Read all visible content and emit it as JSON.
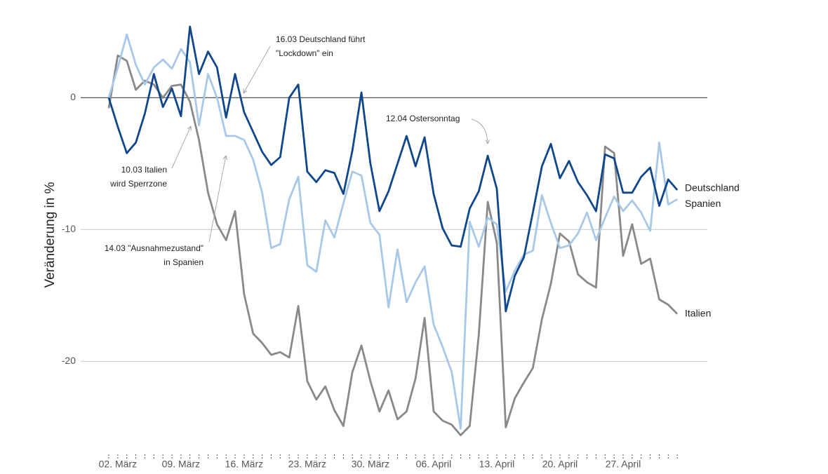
{
  "chart_data": {
    "type": "line",
    "y_label": "Veränderung in %",
    "categories": [
      null,
      "02. März",
      null,
      null,
      null,
      null,
      null,
      null,
      "09. März",
      null,
      null,
      null,
      null,
      null,
      null,
      "16. März",
      null,
      null,
      null,
      null,
      null,
      null,
      "23. März",
      null,
      null,
      null,
      null,
      null,
      null,
      "30. März",
      null,
      null,
      null,
      null,
      null,
      null,
      "06. April",
      null,
      null,
      null,
      null,
      null,
      null,
      "13. April",
      null,
      null,
      null,
      null,
      null,
      null,
      "20. April",
      null,
      null,
      null,
      null,
      null,
      null,
      "27. April",
      null,
      null,
      null,
      null,
      null,
      null
    ],
    "series": [
      {
        "name": "Italien",
        "color": "#898989",
        "values": [
          -0.8,
          3.2,
          2.8,
          0.6,
          1.3,
          1.0,
          0,
          0.9,
          1.0,
          -0.3,
          -3.2,
          -7.2,
          -9.6,
          -10.8,
          -8.6,
          -14.9,
          -17.9,
          -18.6,
          -19.5,
          -19.3,
          -19.7,
          -15.8,
          -21.5,
          -22.9,
          -21.9,
          -23.7,
          -24.9,
          -20.8,
          -18.8,
          -21.5,
          -23.8,
          -22.2,
          -24.4,
          -23.8,
          -21.3,
          -16.7,
          -23.8,
          -24.5,
          -24.8,
          -25.6,
          -24.9,
          -18.0,
          -7.9,
          -11.0,
          -25.0,
          -22.8,
          -21.6,
          -20.5,
          -16.8,
          -14.1,
          -10.3,
          -10.9,
          -13.4,
          -14.0,
          -14.4,
          -3.7,
          -4.2,
          -12.0,
          -9.6,
          -12.6,
          -12.2,
          -15.3,
          -15.7,
          -16.4
        ]
      },
      {
        "name": "Spanien",
        "color": "#a8c8e8",
        "values": [
          0,
          2.3,
          4.8,
          2.5,
          1.0,
          2.3,
          2.9,
          2.2,
          3.7,
          2.7,
          -2.1,
          1.8,
          0,
          -2.9,
          -2.9,
          -3.2,
          -4.7,
          -7.2,
          -11.4,
          -11.1,
          -7.7,
          -6.0,
          -12.7,
          -13.2,
          -9.3,
          -10.6,
          -8.0,
          -5.6,
          -5.9,
          -9.5,
          -10.4,
          -15.9,
          -11.5,
          -15.5,
          -14.0,
          -12.8,
          -17.2,
          -18.9,
          -20.8,
          -25.1,
          -9.4,
          -11.3,
          -9.1,
          -9.6,
          -14.7,
          -13.1,
          -11.9,
          -11.6,
          -7.4,
          -9.5,
          -11.4,
          -11.2,
          -10.3,
          -8.7,
          -10.8,
          -9.1,
          -7.5,
          -8.6,
          -7.8,
          -8.7,
          -10.1,
          -3.4,
          -8.1,
          -7.7
        ]
      },
      {
        "name": "Deutschland",
        "color": "#0f478a",
        "values": [
          0,
          -2.2,
          -4.2,
          -3.4,
          -1.2,
          1.8,
          -0.7,
          0.7,
          -1.4,
          5.4,
          1.8,
          3.5,
          2.3,
          -1.5,
          1.8,
          -1.1,
          -2.6,
          -4.1,
          -5.1,
          -4.5,
          0,
          1.0,
          -5.6,
          -6.4,
          -5.5,
          -5.7,
          -7.3,
          -4.0,
          0.4,
          -5.0,
          -8.6,
          -7.1,
          -5.0,
          -2.9,
          -5.2,
          -3.0,
          -7.3,
          -9.9,
          -11.2,
          -11.3,
          -8.4,
          -7.1,
          -4.4,
          -6.9,
          -16.2,
          -13.5,
          -12.1,
          -8.7,
          -5.2,
          -3.5,
          -6.1,
          -4.8,
          -6.4,
          -7.4,
          -8.6,
          -4.3,
          -4.6,
          -7.2,
          -7.2,
          -6.0,
          -5.3,
          -8.2,
          -6.2,
          -7.0
        ]
      }
    ],
    "ylim": [
      -27,
      5.5
    ],
    "yticks": [
      -20,
      -10,
      0
    ],
    "grid": true,
    "annotations": [
      {
        "lines": [
          "16.03 Deutschland führt",
          "\"Lockdown\" ein"
        ]
      },
      {
        "lines": [
          "12.04 Ostersonntag"
        ]
      },
      {
        "lines": [
          "10.03 Italien",
          "wird Sperrzone"
        ]
      },
      {
        "lines": [
          "14.03 \"Ausnahmezustand\"",
          "in Spanien"
        ]
      }
    ]
  }
}
